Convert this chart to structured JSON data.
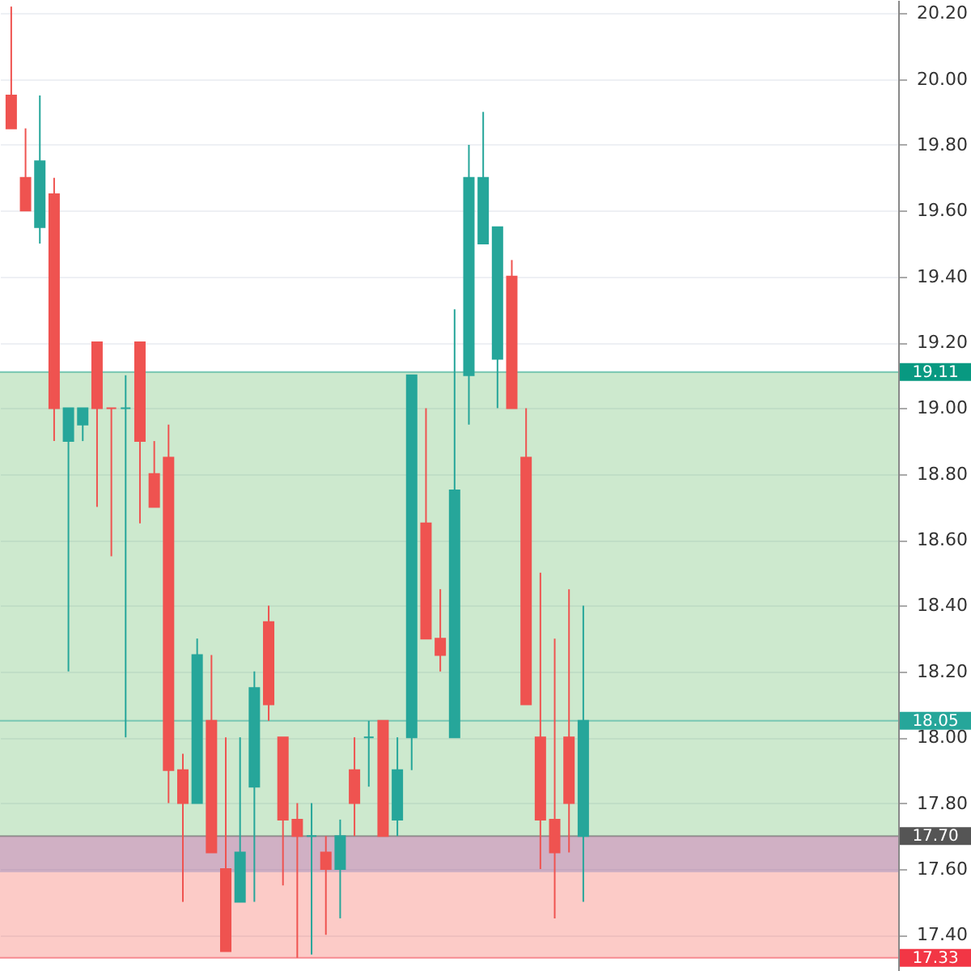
{
  "chart_data": {
    "type": "candlestick",
    "categories": [
      null,
      null,
      null,
      null,
      null,
      null,
      null,
      null,
      null,
      null,
      null,
      null,
      null,
      null,
      null,
      null,
      null,
      null,
      null,
      null,
      null,
      null,
      null,
      null,
      null,
      null,
      null,
      null,
      null,
      null,
      null,
      null,
      null,
      null,
      null,
      null,
      null,
      null,
      null,
      null,
      null,
      null,
      null,
      null,
      null,
      null,
      null,
      null,
      null,
      null,
      null,
      null,
      null,
      null,
      null,
      null,
      null,
      null,
      null,
      null,
      null,
      null
    ],
    "ohlc": [
      [
        19.95,
        20.22,
        19.85,
        19.85
      ],
      [
        19.7,
        19.85,
        19.6,
        19.6
      ],
      [
        19.55,
        19.95,
        19.5,
        19.75
      ],
      [
        19.65,
        19.7,
        18.9,
        19.0
      ],
      [
        18.9,
        19.0,
        18.2,
        19.0
      ],
      [
        18.95,
        19.0,
        18.9,
        19.0
      ],
      [
        19.2,
        19.2,
        18.7,
        19.0
      ],
      [
        19.0,
        19.0,
        18.55,
        19.0
      ],
      [
        19.0,
        19.1,
        18.0,
        19.0
      ],
      [
        19.2,
        19.2,
        18.65,
        18.9
      ],
      [
        18.8,
        18.9,
        18.7,
        18.7
      ],
      [
        18.85,
        18.95,
        17.8,
        17.9
      ],
      [
        17.9,
        17.95,
        17.5,
        17.8
      ],
      [
        17.8,
        18.3,
        17.8,
        18.25
      ],
      [
        18.05,
        18.25,
        17.65,
        17.65
      ],
      [
        17.6,
        18.0,
        17.35,
        17.35
      ],
      [
        17.5,
        18.0,
        17.5,
        17.65
      ],
      [
        17.85,
        18.2,
        17.5,
        18.15
      ],
      [
        18.35,
        18.4,
        18.05,
        18.1
      ],
      [
        18.0,
        18.0,
        17.55,
        17.75
      ],
      [
        17.75,
        17.8,
        17.33,
        17.7
      ],
      [
        17.7,
        17.8,
        17.34,
        17.7
      ],
      [
        17.65,
        17.7,
        17.4,
        17.6
      ],
      [
        17.6,
        17.75,
        17.45,
        17.7
      ],
      [
        17.9,
        18.0,
        17.7,
        17.8
      ],
      [
        18.0,
        18.05,
        17.85,
        18.0
      ],
      [
        18.05,
        18.05,
        17.7,
        17.7
      ],
      [
        17.75,
        18.0,
        17.7,
        17.9
      ],
      [
        18.0,
        19.1,
        17.9,
        19.1
      ],
      [
        18.65,
        19.0,
        18.3,
        18.3
      ],
      [
        18.3,
        18.45,
        18.2,
        18.25
      ],
      [
        18.0,
        19.3,
        18.0,
        18.75
      ],
      [
        19.1,
        19.8,
        18.95,
        19.7
      ],
      [
        19.5,
        19.9,
        19.5,
        19.7
      ],
      [
        19.15,
        19.55,
        19.0,
        19.55
      ],
      [
        19.4,
        19.45,
        19.0,
        19.0
      ],
      [
        18.85,
        19.0,
        18.1,
        18.1
      ],
      [
        18.0,
        18.5,
        17.6,
        17.75
      ],
      [
        17.75,
        18.3,
        17.45,
        17.65
      ],
      [
        18.0,
        18.45,
        17.65,
        17.8
      ],
      [
        17.7,
        18.4,
        17.5,
        18.05
      ],
      null,
      null,
      null,
      null,
      null,
      null,
      null,
      null,
      null,
      null,
      null,
      null,
      null,
      null,
      null,
      null,
      null,
      null,
      null,
      null,
      null
    ],
    "colors": [
      "#ef5350",
      "#ef5350",
      "#26a69a",
      "#ef5350",
      "#26a69a",
      "#26a69a",
      "#ef5350",
      "#ef5350",
      "#26a69a",
      "#ef5350",
      "#ef5350",
      "#ef5350",
      "#ef5350",
      "#26a69a",
      "#ef5350",
      "#ef5350",
      "#26a69a",
      "#26a69a",
      "#ef5350",
      "#ef5350",
      "#ef5350",
      "#26a69a",
      "#ef5350",
      "#26a69a",
      "#ef5350",
      "#26a69a",
      "#ef5350",
      "#26a69a",
      "#26a69a",
      "#ef5350",
      "#ef5350",
      "#26a69a",
      "#26a69a",
      "#26a69a",
      "#26a69a",
      "#ef5350",
      "#ef5350",
      "#ef5350",
      "#ef5350",
      "#ef5350",
      "#26a69a",
      null,
      null,
      null,
      null,
      null,
      null,
      null,
      null,
      null,
      null,
      null,
      null,
      null,
      null,
      null,
      null,
      null,
      null,
      null,
      null,
      null
    ],
    "ylim": [
      17.29,
      20.24
    ],
    "yticks": [
      {
        "value": 17.4,
        "label": "17.40"
      },
      {
        "value": 17.6,
        "label": "17.60"
      },
      {
        "value": 17.8,
        "label": "17.80"
      },
      {
        "value": 18.0,
        "label": "18.00"
      },
      {
        "value": 18.2,
        "label": "18.20"
      },
      {
        "value": 18.4,
        "label": "18.40"
      },
      {
        "value": 18.6,
        "label": "18.60"
      },
      {
        "value": 18.8,
        "label": "18.80"
      },
      {
        "value": 19.0,
        "label": "19.00"
      },
      {
        "value": 19.2,
        "label": "19.20"
      },
      {
        "value": 19.4,
        "label": "19.40"
      },
      {
        "value": 19.6,
        "label": "19.60"
      },
      {
        "value": 19.8,
        "label": "19.80"
      },
      {
        "value": 20.0,
        "label": "20.00"
      },
      {
        "value": 20.2,
        "label": "20.20"
      }
    ],
    "grid": "y",
    "tick_labels": "y",
    "bands": [
      {
        "axis": "y",
        "from": 17.7,
        "to": 19.11,
        "color": "#4caf50"
      },
      {
        "axis": "y",
        "from": 17.33,
        "to": 17.7,
        "color": "#f44336"
      },
      {
        "axis": "y",
        "from": 17.59,
        "to": 17.7,
        "color": "#5c6bc0"
      }
    ],
    "ref_lines": [
      {
        "axis": "y",
        "value": 19.11,
        "label": "19.11",
        "color": "#089981"
      },
      {
        "axis": "y",
        "value": 18.05,
        "label": "18.05",
        "color": "#26a69a"
      },
      {
        "axis": "y",
        "value": 17.7,
        "label": "17.70",
        "color": "#555555"
      },
      {
        "axis": "y",
        "value": 17.33,
        "label": "17.33",
        "color": "#f23645"
      }
    ]
  }
}
